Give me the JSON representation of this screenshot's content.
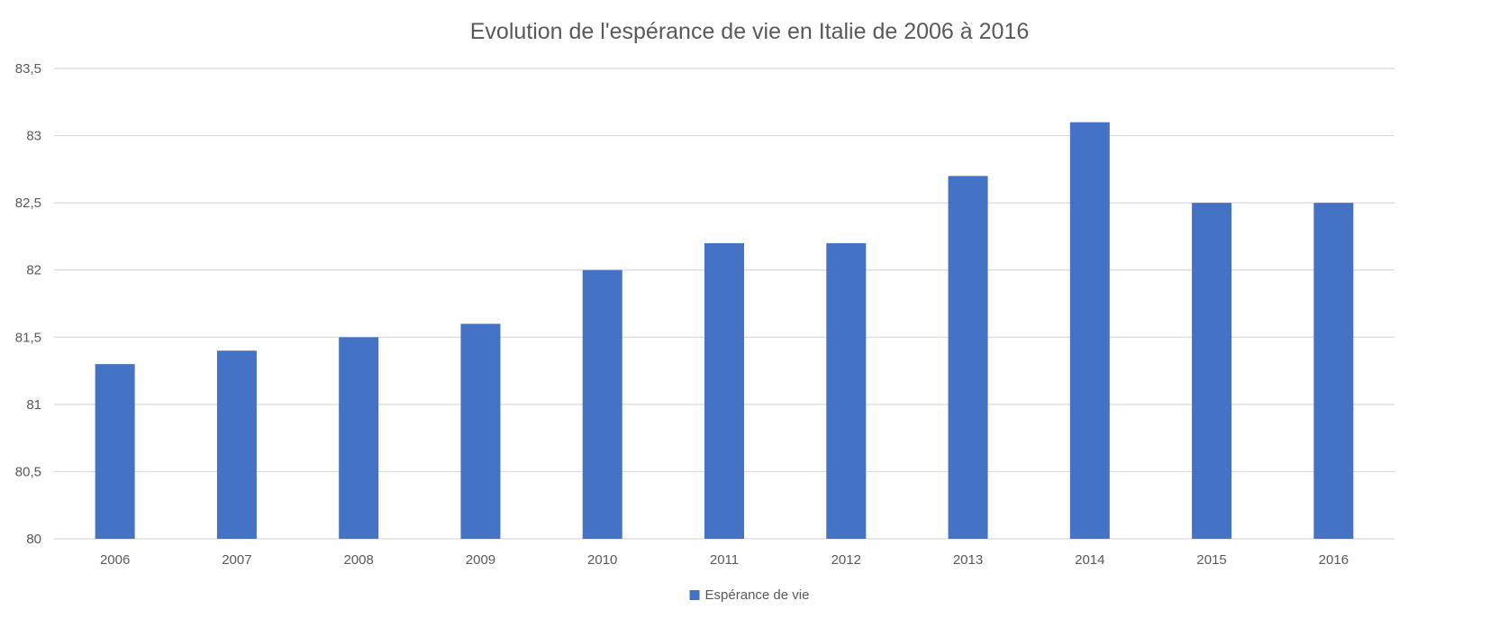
{
  "chart_data": {
    "type": "bar",
    "title": "Evolution de l'espérance de vie en Italie de 2006 à 2016",
    "xlabel": "",
    "ylabel": "",
    "categories": [
      "2006",
      "2007",
      "2008",
      "2009",
      "2010",
      "2011",
      "2012",
      "2013",
      "2014",
      "2015",
      "2016"
    ],
    "series": [
      {
        "name": "Espérance de vie",
        "color": "#4472c4",
        "values": [
          81.3,
          81.4,
          81.5,
          81.6,
          82.0,
          82.2,
          82.2,
          82.7,
          83.1,
          82.5,
          82.5
        ]
      }
    ],
    "ylim": [
      80,
      83.5
    ],
    "yticks": [
      "80",
      "80,5",
      "81",
      "81,5",
      "82",
      "82,5",
      "83",
      "83,5"
    ],
    "grid": true,
    "legend_position": "bottom"
  }
}
